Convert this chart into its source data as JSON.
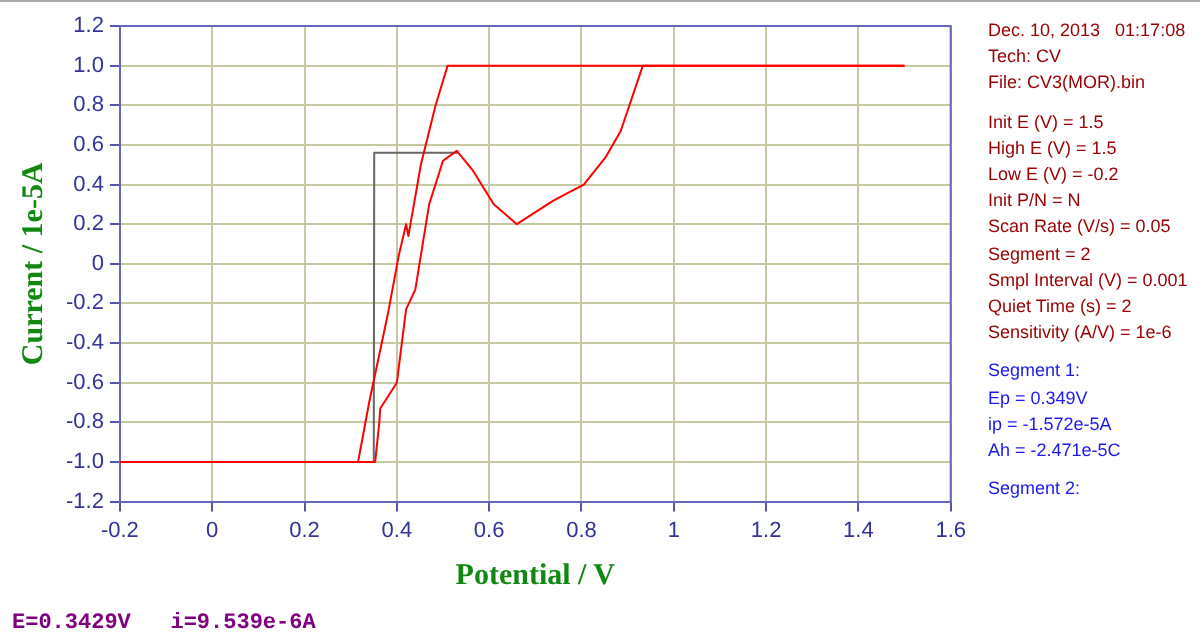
{
  "chart_data": {
    "type": "line",
    "xlabel": "Potential / V",
    "ylabel": "Current / 1e-5A",
    "xlim": [
      -0.2,
      1.6
    ],
    "xticks": [
      -0.2,
      0,
      0.2,
      0.4,
      0.6,
      0.8,
      1,
      1.2,
      1.4,
      1.6
    ],
    "ylim": [
      -1.2,
      1.2
    ],
    "yticks": [
      -1.2,
      {
        "value": -1,
        "label": "-1.0"
      },
      -0.8,
      -0.6,
      -0.4,
      -0.2,
      0,
      0.2,
      0.4,
      0.6,
      0.8,
      {
        "value": 1,
        "label": "1.0"
      },
      1.2
    ],
    "grid": true,
    "legend": false,
    "marker": "none",
    "line_style": "solid",
    "series": [
      {
        "type": "line",
        "color": "#ff0000",
        "x": [
          -0.2,
          0.353,
          0.362,
          0.364,
          0.4,
          0.42,
          0.44,
          0.47,
          0.5,
          0.53,
          0.565,
          0.61,
          0.66,
          0.74,
          0.805,
          0.853,
          0.885,
          0.933,
          1.5
        ],
        "values": [
          -1.0,
          -1.0,
          -0.8,
          -0.73,
          -0.6,
          -0.23,
          -0.13,
          0.3,
          0.52,
          0.57,
          0.47,
          0.3,
          0.2,
          0.32,
          0.4,
          0.54,
          0.67,
          1.0,
          1.0
        ]
      },
      {
        "type": "line",
        "color": "#ff0000",
        "x": [
          -0.2,
          0.316,
          0.34,
          0.38,
          0.404,
          0.42,
          0.425,
          0.452,
          0.484,
          0.51,
          1.5
        ],
        "values": [
          -1.0,
          -1.0,
          -0.7,
          -0.26,
          0.04,
          0.2,
          0.14,
          0.5,
          0.8,
          1.0,
          1.0
        ]
      },
      {
        "type": "line",
        "color": "#666666",
        "x": [
          0.35,
          0.351,
          0.532
        ],
        "values": [
          -1.0,
          0.56,
          0.56
        ]
      }
    ],
    "annotations": [
      "Dec. 10, 2013   01:17:08",
      "Tech: CV",
      "File: CV3(MOR).bin",
      "Init E (V) = 1.5",
      "High E (V) = 1.5",
      "Low E (V) = -0.2",
      "Init P/N = N",
      "Scan Rate (V/s) = 0.05",
      "Segment = 2",
      "Smpl Interval (V) = 0.001",
      "Quiet Time (s) = 2",
      "Sensitivity (A/V) = 1e-6",
      "Segment 1:",
      "Ep = 0.349V",
      "ip = -1.572e-5A",
      "Ah = -2.471e-5C",
      "Segment 2:",
      "E=0.3429V   i=9.539e-6A"
    ]
  }
}
